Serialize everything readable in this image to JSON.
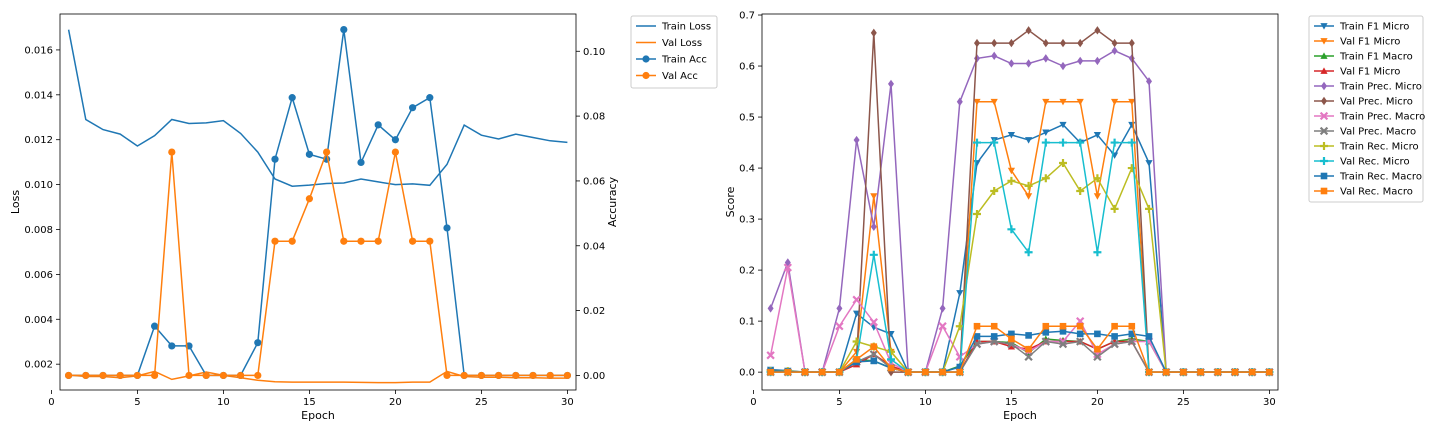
{
  "chart_data": [
    {
      "type": "line",
      "xlabel": "Epoch",
      "ylabel_left": "Loss",
      "ylabel_right": "Accuracy",
      "xlim": [
        0.5,
        30.5
      ],
      "ylim_left": [
        0.00085,
        0.0176
      ],
      "ylim_right": [
        -0.0045,
        0.1115
      ],
      "x_ticks": [
        0,
        5,
        10,
        15,
        20,
        25,
        30
      ],
      "y_ticks_left": [
        "0.002",
        "0.004",
        "0.006",
        "0.008",
        "0.010",
        "0.012",
        "0.014",
        "0.016"
      ],
      "y_ticks_right": [
        "0.00",
        "0.02",
        "0.04",
        "0.06",
        "0.08",
        "0.10"
      ],
      "legend_position": "outside-top-right",
      "x": [
        1,
        2,
        3,
        4,
        5,
        6,
        7,
        8,
        9,
        10,
        11,
        12,
        13,
        14,
        15,
        16,
        17,
        18,
        19,
        20,
        21,
        22,
        23,
        24,
        25,
        26,
        27,
        28,
        29,
        30
      ],
      "series": [
        {
          "name": "Train Loss",
          "axis": "left",
          "color": "#1f77b4",
          "marker": "none",
          "values": [
            0.0169,
            0.0129,
            0.01245,
            0.01225,
            0.01172,
            0.01218,
            0.0129,
            0.01272,
            0.01275,
            0.01285,
            0.01228,
            0.01145,
            0.01025,
            0.00993,
            0.00998,
            0.01005,
            0.01007,
            0.01025,
            0.01012,
            0.01,
            0.01003,
            0.00997,
            0.0109,
            0.01265,
            0.0122,
            0.01203,
            0.01225,
            0.0121,
            0.01195,
            0.01188
          ]
        },
        {
          "name": "Val Loss",
          "axis": "left",
          "color": "#ff7f0e",
          "marker": "none",
          "values": [
            0.00152,
            0.00145,
            0.00145,
            0.0014,
            0.00148,
            0.00168,
            0.00132,
            0.00148,
            0.00165,
            0.0015,
            0.0014,
            0.00128,
            0.00122,
            0.0012,
            0.0012,
            0.0012,
            0.0012,
            0.00119,
            0.00118,
            0.00118,
            0.0012,
            0.0012,
            0.00168,
            0.00145,
            0.00142,
            0.00142,
            0.0014,
            0.0014,
            0.00138,
            0.00138
          ]
        },
        {
          "name": "Train Acc",
          "axis": "right",
          "color": "#1f77b4",
          "marker": "circle",
          "values": [
            0,
            0,
            0,
            0,
            0,
            0.0152,
            0.0091,
            0.0091,
            0,
            0,
            0,
            0.0101,
            0.0667,
            0.0857,
            0.0682,
            0.0667,
            0.1067,
            0.0657,
            0.0773,
            0.0727,
            0.0826,
            0.0857,
            0.0455,
            0,
            0,
            0,
            0,
            0,
            0,
            0
          ]
        },
        {
          "name": "Val Acc",
          "axis": "right",
          "color": "#ff7f0e",
          "marker": "circle",
          "values": [
            0,
            0,
            0,
            0,
            0,
            0,
            0.0689,
            0,
            0,
            0,
            0,
            0,
            0.0414,
            0.0414,
            0.0545,
            0.0689,
            0.0414,
            0.0414,
            0.0414,
            0.0689,
            0.0414,
            0.0414,
            0,
            0,
            0,
            0,
            0,
            0,
            0,
            0
          ]
        }
      ]
    },
    {
      "type": "line",
      "xlabel": "Epoch",
      "ylabel": "Score",
      "xlim": [
        0.5,
        30.5
      ],
      "ylim": [
        -0.035,
        0.702
      ],
      "x_ticks": [
        0,
        5,
        10,
        15,
        20,
        25,
        30
      ],
      "y_ticks": [
        "0.0",
        "0.1",
        "0.2",
        "0.3",
        "0.4",
        "0.5",
        "0.6",
        "0.7"
      ],
      "legend_position": "outside-top-right",
      "x": [
        1,
        2,
        3,
        4,
        5,
        6,
        7,
        8,
        9,
        10,
        11,
        12,
        13,
        14,
        15,
        16,
        17,
        18,
        19,
        20,
        21,
        22,
        23,
        24,
        25,
        26,
        27,
        28,
        29,
        30
      ],
      "series": [
        {
          "name": "Train F1 Micro",
          "color": "#1f77b4",
          "marker": "triangle-down",
          "values": [
            0.005,
            0.003,
            0,
            0,
            0,
            0.115,
            0.088,
            0.075,
            0,
            0,
            0,
            0.155,
            0.41,
            0.455,
            0.465,
            0.455,
            0.47,
            0.485,
            0.45,
            0.465,
            0.425,
            0.485,
            0.41,
            0,
            0,
            0,
            0,
            0,
            0,
            0
          ]
        },
        {
          "name": "Val F1 Micro",
          "color": "#ff7f0e",
          "marker": "triangle-down",
          "values": [
            0,
            0,
            0,
            0,
            0,
            0.04,
            0.345,
            0.04,
            0,
            0,
            0,
            0,
            0.53,
            0.53,
            0.395,
            0.345,
            0.53,
            0.53,
            0.53,
            0.345,
            0.53,
            0.53,
            0,
            0,
            0,
            0,
            0,
            0,
            0,
            0
          ]
        },
        {
          "name": "Train F1 Macro",
          "color": "#2ca02c",
          "marker": "triangle-up",
          "values": [
            0.002,
            0.001,
            0,
            0,
            0,
            0.025,
            0.022,
            0.008,
            0,
            0,
            0,
            0.012,
            0.06,
            0.06,
            0.058,
            0.038,
            0.065,
            0.062,
            0.06,
            0.045,
            0.06,
            0.065,
            0.06,
            0,
            0,
            0,
            0,
            0,
            0,
            0
          ]
        },
        {
          "name": "Val F1 Micro",
          "color": "#d62728",
          "marker": "triangle-up",
          "values": [
            0,
            0,
            0,
            0,
            0,
            0.015,
            0.035,
            0.012,
            0,
            0,
            0,
            0,
            0.06,
            0.06,
            0.05,
            0.045,
            0.06,
            0.06,
            0.06,
            0.045,
            0.06,
            0.06,
            0,
            0,
            0,
            0,
            0,
            0,
            0,
            0
          ]
        },
        {
          "name": "Train Prec. Micro",
          "color": "#9467bd",
          "marker": "diamond",
          "values": [
            0.125,
            0.215,
            0,
            0,
            0.125,
            0.455,
            0.285,
            0.565,
            0,
            0,
            0.125,
            0.53,
            0.615,
            0.62,
            0.605,
            0.605,
            0.615,
            0.6,
            0.61,
            0.61,
            0.63,
            0.615,
            0.57,
            0,
            0,
            0,
            0,
            0,
            0,
            0
          ]
        },
        {
          "name": "Val Prec. Micro",
          "color": "#8c564b",
          "marker": "diamond",
          "values": [
            0,
            0,
            0,
            0,
            0,
            0.025,
            0.665,
            0,
            0,
            0,
            0,
            0,
            0.645,
            0.645,
            0.645,
            0.67,
            0.645,
            0.645,
            0.645,
            0.67,
            0.645,
            0.645,
            0,
            0,
            0,
            0,
            0,
            0,
            0,
            0
          ]
        },
        {
          "name": "Train Prec. Macro",
          "color": "#e377c2",
          "marker": "x",
          "values": [
            0.033,
            0.205,
            0,
            0,
            0.09,
            0.142,
            0.098,
            0.018,
            0,
            0,
            0.09,
            0.03,
            0.055,
            0.06,
            0.055,
            0.04,
            0.06,
            0.06,
            0.1,
            0.035,
            0.055,
            0.06,
            0.06,
            0,
            0,
            0,
            0,
            0,
            0,
            0
          ]
        },
        {
          "name": "Val Prec. Macro",
          "color": "#7f7f7f",
          "marker": "x",
          "values": [
            0,
            0,
            0,
            0,
            0,
            0.02,
            0.035,
            0.008,
            0,
            0,
            0,
            0,
            0.055,
            0.06,
            0.055,
            0.03,
            0.06,
            0.055,
            0.06,
            0.03,
            0.055,
            0.06,
            0,
            0,
            0,
            0,
            0,
            0,
            0,
            0
          ]
        },
        {
          "name": "Train Rec. Micro",
          "color": "#bcbd22",
          "marker": "plus",
          "values": [
            0.002,
            0.002,
            0,
            0,
            0,
            0.06,
            0.05,
            0.04,
            0,
            0,
            0,
            0.09,
            0.31,
            0.355,
            0.375,
            0.365,
            0.38,
            0.41,
            0.355,
            0.38,
            0.32,
            0.4,
            0.32,
            0,
            0,
            0,
            0,
            0,
            0,
            0
          ]
        },
        {
          "name": "Val Rec. Micro",
          "color": "#17becf",
          "marker": "plus",
          "values": [
            0,
            0,
            0,
            0,
            0,
            0.025,
            0.23,
            0.025,
            0,
            0,
            0,
            0,
            0.45,
            0.45,
            0.28,
            0.235,
            0.45,
            0.45,
            0.45,
            0.235,
            0.45,
            0.45,
            0,
            0,
            0,
            0,
            0,
            0,
            0,
            0
          ]
        },
        {
          "name": "Train Rec. Macro",
          "color": "#1f77b4",
          "marker": "square",
          "values": [
            0.002,
            0.001,
            0,
            0,
            0,
            0.02,
            0.022,
            0.008,
            0,
            0,
            0,
            0.01,
            0.07,
            0.07,
            0.075,
            0.072,
            0.078,
            0.08,
            0.075,
            0.075,
            0.07,
            0.075,
            0.07,
            0,
            0,
            0,
            0,
            0,
            0,
            0
          ]
        },
        {
          "name": "Val Rec. Macro",
          "color": "#ff7f0e",
          "marker": "square",
          "values": [
            0,
            0,
            0,
            0,
            0,
            0.025,
            0.05,
            0.008,
            0,
            0,
            0,
            0,
            0.09,
            0.09,
            0.065,
            0.045,
            0.09,
            0.09,
            0.09,
            0.045,
            0.09,
            0.09,
            0,
            0,
            0,
            0,
            0,
            0,
            0,
            0
          ]
        }
      ]
    }
  ]
}
